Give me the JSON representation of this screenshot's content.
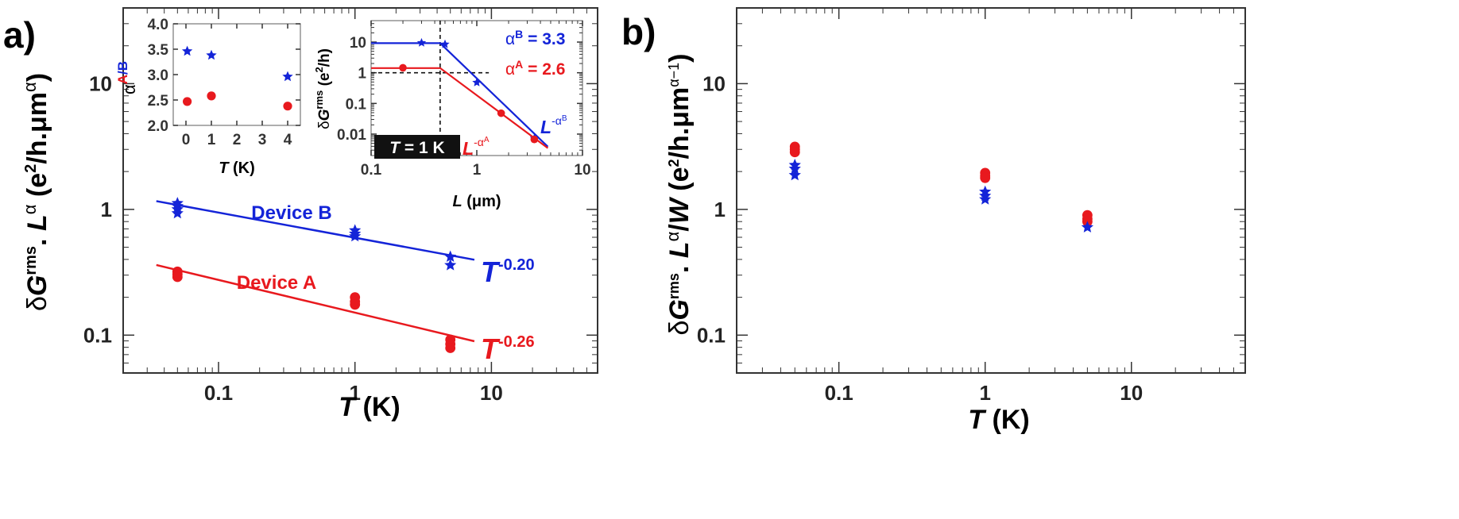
{
  "colors": {
    "red": "#e8191e",
    "blue": "#1424d8",
    "axis": "#333333"
  },
  "chart_data": [
    {
      "panel": "a)",
      "type": "scatter",
      "xscale": "log",
      "yscale": "log",
      "xlim": [
        0.02,
        60
      ],
      "ylim": [
        0.05,
        40
      ],
      "xlabel_symbol": "T",
      "xlabel_units": " (K)",
      "ylabel": {
        "prefix": "δ",
        "G": "G",
        "rms": "rms",
        "dot": ". ",
        "L": "L",
        "alpha": "α",
        "units_open": " (e",
        "two": "2",
        "units_mid": "/h.μm",
        "units_close": ")"
      },
      "xticks": [
        0.1,
        1,
        10
      ],
      "xtick_labels": [
        "0.1",
        "1",
        "10"
      ],
      "yticks": [
        0.1,
        1,
        10
      ],
      "ytick_labels": [
        "0.1",
        "1",
        "10"
      ],
      "series": [
        {
          "name": "Device B",
          "color": "#1424d8",
          "marker": "star",
          "points": [
            [
              0.05,
              1.12
            ],
            [
              0.05,
              1.06
            ],
            [
              0.05,
              1.0
            ],
            [
              0.05,
              0.93
            ],
            [
              1,
              0.68
            ],
            [
              1,
              0.64
            ],
            [
              1,
              0.61
            ],
            [
              5,
              0.42
            ],
            [
              5,
              0.36
            ]
          ],
          "fit": {
            "x0": 0.035,
            "x1": 7.5,
            "A": 0.595,
            "p": -0.2
          }
        },
        {
          "name": "Device A",
          "color": "#e8191e",
          "marker": "circle",
          "points": [
            [
              0.05,
              0.32
            ],
            [
              0.05,
              0.305
            ],
            [
              0.05,
              0.29
            ],
            [
              1,
              0.2
            ],
            [
              1,
              0.185
            ],
            [
              1,
              0.175
            ],
            [
              5,
              0.092
            ],
            [
              5,
              0.085
            ],
            [
              5,
              0.079
            ]
          ],
          "fit": {
            "x0": 0.035,
            "x1": 7.5,
            "A": 0.151,
            "p": -0.26
          }
        }
      ],
      "annotations": [
        {
          "text": "Device B",
          "color": "#1424d8"
        },
        {
          "text": "Device A",
          "color": "#e8191e"
        },
        {
          "base": "T",
          "exp": "-0.20",
          "color": "#1424d8"
        },
        {
          "base": "T",
          "exp": "-0.26",
          "color": "#e8191e"
        }
      ],
      "insets": [
        {
          "type": "scatter",
          "xlim": [
            -0.5,
            4.5
          ],
          "ylim": [
            2.0,
            4.0
          ],
          "xticks": [
            0,
            1,
            2,
            3,
            4
          ],
          "xtick_labels": [
            "0",
            "1",
            "2",
            "3",
            "4"
          ],
          "yticks": [
            2.0,
            2.5,
            3.0,
            3.5,
            4.0
          ],
          "ytick_labels": [
            "2.0",
            "2.5",
            "3.0",
            "3.5",
            "4.0"
          ],
          "xlabel_symbol": "T",
          "xlabel_units": " (K)",
          "ylabel": {
            "alpha": "α",
            "a": "A",
            "slash": "/",
            "b": "B"
          },
          "series": [
            {
              "name": "B",
              "color": "#1424d8",
              "marker": "star",
              "points": [
                [
                  0.05,
                  3.46
                ],
                [
                  1,
                  3.38
                ],
                [
                  4,
                  2.96
                ]
              ]
            },
            {
              "name": "A",
              "color": "#e8191e",
              "marker": "circle",
              "points": [
                [
                  0.05,
                  2.47
                ],
                [
                  1,
                  2.58
                ],
                [
                  4,
                  2.38
                ]
              ]
            }
          ]
        },
        {
          "type": "line",
          "xscale": "log",
          "yscale": "log",
          "xlim": [
            0.1,
            10
          ],
          "ylim": [
            0.002,
            50
          ],
          "xticks": [
            0.1,
            1,
            10
          ],
          "xtick_labels": [
            "0.1",
            "1",
            "10"
          ],
          "yticks": [
            0.01,
            0.1,
            1,
            10
          ],
          "ytick_labels": [
            "0.01",
            "0.1",
            "1",
            "10"
          ],
          "xlabel": {
            "L": "L",
            "units": " (μm)"
          },
          "ylabel": {
            "prefix": "δ",
            "G": "G",
            "rms": "rms",
            "units_open": " (e",
            "two": "2",
            "units_close": "/h)"
          },
          "series": [
            {
              "name": "B",
              "color": "#1424d8",
              "marker": "star",
              "points": [
                [
                  0.3,
                  9.5
                ],
                [
                  0.5,
                  8.5
                ],
                [
                  1,
                  0.48
                ],
                [
                  3.5,
                  0.0073
                ]
              ],
              "line": [
                [
                  0.1,
                  9.2
                ],
                [
                  0.45,
                  9.2
                ],
                [
                  4.7,
                  0.0039
                ]
              ]
            },
            {
              "name": "A",
              "color": "#e8191e",
              "marker": "circle",
              "points": [
                [
                  0.2,
                  1.45
                ],
                [
                  1.7,
                  0.048
                ],
                [
                  3.5,
                  0.0067
                ]
              ],
              "line": [
                [
                  0.1,
                  1.42
                ],
                [
                  0.45,
                  1.42
                ],
                [
                  4.7,
                  0.0035
                ]
              ]
            }
          ],
          "dashed": {
            "x": 0.45,
            "y": 1.0
          },
          "legend": [
            {
              "sym": "α",
              "sup": "B",
              "rest": " = 3.3",
              "color": "#1424d8"
            },
            {
              "sym": "α",
              "sup": "A",
              "rest": " = 2.6",
              "color": "#e8191e"
            }
          ],
          "labels": [
            {
              "base": "L",
              "exp": "-α",
              "sup": "B",
              "color": "#1424d8"
            },
            {
              "base": "L",
              "exp": "-α",
              "sup": "A",
              "color": "#e8191e"
            }
          ],
          "badge": {
            "T": "T",
            "rest": " = 1 K"
          }
        }
      ]
    },
    {
      "panel": "b)",
      "type": "scatter",
      "xscale": "log",
      "yscale": "log",
      "xlim": [
        0.02,
        60
      ],
      "ylim": [
        0.05,
        40
      ],
      "xlabel_symbol": "T",
      "xlabel_units": " (K)",
      "ylabel": {
        "prefix": "δ",
        "G": "G",
        "rms": "rms",
        "dot": ". ",
        "L": "L",
        "alpha": "α",
        "slash": "/",
        "W": "W",
        "units_open": " (e",
        "two": "2",
        "units_mid": "/h.μm",
        "units_exp": "α−1",
        "units_close": ")"
      },
      "xticks": [
        0.1,
        1,
        10
      ],
      "xtick_labels": [
        "0.1",
        "1",
        "10"
      ],
      "yticks": [
        0.1,
        1,
        10
      ],
      "ytick_labels": [
        "0.1",
        "1",
        "10"
      ],
      "series": [
        {
          "name": "A",
          "color": "#e8191e",
          "marker": "circle",
          "points": [
            [
              0.05,
              3.15
            ],
            [
              0.05,
              3.0
            ],
            [
              0.05,
              2.85
            ],
            [
              1,
              1.95
            ],
            [
              1,
              1.85
            ],
            [
              1,
              1.78
            ],
            [
              5,
              0.9
            ],
            [
              5,
              0.84
            ],
            [
              5,
              0.8
            ]
          ]
        },
        {
          "name": "B",
          "color": "#1424d8",
          "marker": "star",
          "points": [
            [
              0.05,
              2.25
            ],
            [
              0.05,
              2.1
            ],
            [
              0.05,
              1.87
            ],
            [
              1,
              1.38
            ],
            [
              1,
              1.28
            ],
            [
              1,
              1.2
            ],
            [
              5,
              0.72
            ]
          ]
        }
      ]
    }
  ]
}
